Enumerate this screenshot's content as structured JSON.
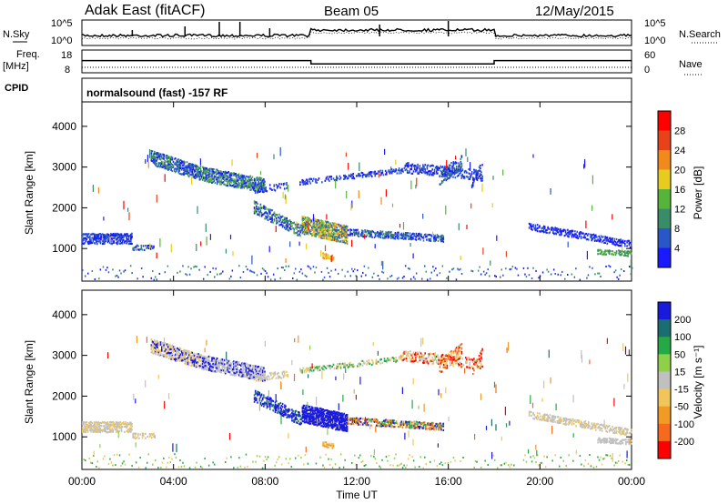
{
  "chart_data": {
    "type": "heatmap",
    "header": {
      "title": "Adak East (fitACF)",
      "beam": "Beam 05",
      "date": "12/May/2015"
    },
    "noise_panel": {
      "left_label": "N.Sky",
      "left_ticks": [
        "10^5",
        "10^0"
      ],
      "right_label": "N.Search",
      "right_ticks": [
        "10^5",
        "10^0"
      ]
    },
    "freq_panel": {
      "left_label_1": "Freq.",
      "left_label_2": "[MHz]",
      "left_ticks": [
        "18",
        "8"
      ],
      "right_label": "Nave",
      "right_ticks": [
        "60",
        "0"
      ],
      "freq_steps": [
        {
          "from": 0,
          "to": 10,
          "mhz": 13.5
        },
        {
          "from": 10,
          "to": 18,
          "mhz": 11.5
        },
        {
          "from": 18,
          "to": 24,
          "mhz": 13.5
        }
      ]
    },
    "cpid_label": "CPID",
    "cpid_text": "normalsound (fast) -157 RF",
    "power_panel": {
      "ylabel": "Slant Range [km]",
      "yticks": [
        "1000",
        "2000",
        "3000",
        "4000"
      ],
      "ylim": [
        200,
        4600
      ],
      "colorbar_label": "Power [dB]",
      "colorbar_ticks": [
        "4",
        "8",
        "12",
        "16",
        "20",
        "24",
        "28"
      ],
      "colors": [
        "#1a1aff",
        "#2a57c8",
        "#3a8b68",
        "#56b43a",
        "#e6cc1e",
        "#f08a1a",
        "#e8421a",
        "#ff0000"
      ]
    },
    "velocity_panel": {
      "ylabel": "Slant Range [km]",
      "yticks": [
        "1000",
        "2000",
        "3000",
        "4000"
      ],
      "ylim": [
        200,
        4600
      ],
      "colorbar_label": "Velocity [m s⁻¹]",
      "colorbar_ticks": [
        "200",
        "100",
        "50",
        "15",
        "-15",
        "-50",
        "-100",
        "-200"
      ],
      "colors": [
        "#1a1add",
        "#1a6e70",
        "#26a846",
        "#8ed04a",
        "#c0c0c0",
        "#f0c65a",
        "#f29a26",
        "#f56a1c",
        "#ff0000"
      ]
    },
    "xaxis": {
      "xlabel": "Time UT",
      "ticks": [
        "00:00",
        "04:00",
        "08:00",
        "12:00",
        "16:00",
        "20:00",
        "00:00"
      ],
      "xlim": [
        0,
        24
      ]
    }
  }
}
